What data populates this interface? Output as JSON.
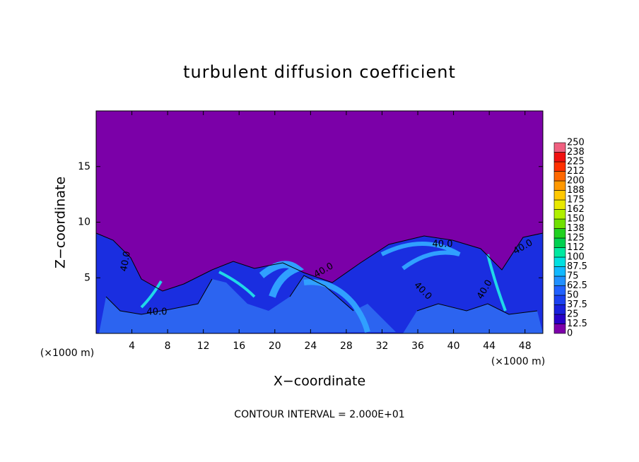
{
  "chart_data": {
    "type": "contour",
    "title": "turbulent diffusion coefficient",
    "x_label": "X−coordinate",
    "y_label": "Z−coordinate",
    "x_unit_labels": [
      "(×1000 m)",
      "(×1000 m)"
    ],
    "footer": "CONTOUR INTERVAL = 2.000E+01",
    "xlim": [
      0,
      50
    ],
    "xticks": [
      4,
      8,
      12,
      16,
      20,
      24,
      28,
      32,
      36,
      40,
      44,
      48
    ],
    "ylim": [
      0,
      20
    ],
    "yticks": [
      5,
      10,
      15
    ],
    "colorbar": {
      "levels": [
        0,
        12.5,
        25,
        37.5,
        50,
        62.5,
        75,
        87.5,
        100,
        {
          "value": 112.5,
          "label": "112"
        },
        125,
        {
          "value": 137.5,
          "label": "138"
        },
        150,
        {
          "value": 162.5,
          "label": "162"
        },
        175,
        {
          "value": 187.5,
          "label": "188"
        },
        200,
        {
          "value": 212.5,
          "label": "212"
        },
        225,
        {
          "value": 237.5,
          "label": "238"
        },
        250
      ],
      "colors": [
        "#7d00aa",
        "#2800c8",
        "#1820dc",
        "#1a40f0",
        "#2060ff",
        "#2090ff",
        "#10b8ff",
        "#00e0e0",
        "#00e8a0",
        "#00d050",
        "#20d020",
        "#70e000",
        "#b0f000",
        "#e8e800",
        "#ffc800",
        "#ff9800",
        "#ff6800",
        "#ff3000",
        "#f01010",
        "#f06080"
      ]
    },
    "contour_labels": [
      "40.0",
      "40.0",
      "40.0",
      "40.0",
      "40.0",
      "40.0",
      "40.0"
    ]
  }
}
